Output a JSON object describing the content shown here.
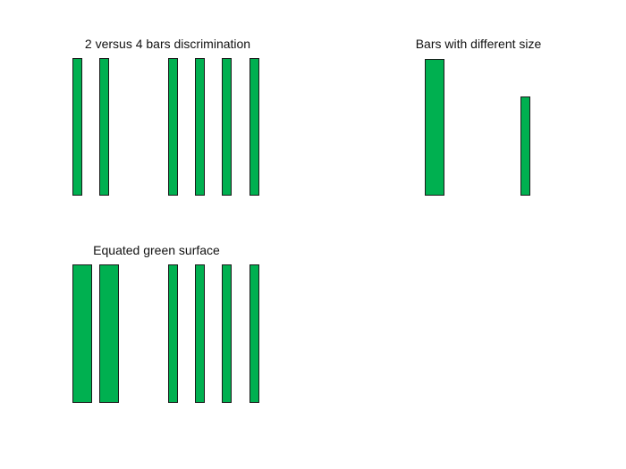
{
  "bar_color": "#00b050",
  "bar_border_color": "#1a1a1a",
  "panels": {
    "two_vs_four": {
      "title": "2 versus 4 bars discrimination",
      "group_a_bar_count": 2,
      "group_b_bar_count": 4
    },
    "different_size": {
      "title": "Bars with different size",
      "bar_count": 2
    },
    "equated_surface": {
      "title": "Equated green surface",
      "group_a_bar_count": 2,
      "group_b_bar_count": 4
    }
  }
}
